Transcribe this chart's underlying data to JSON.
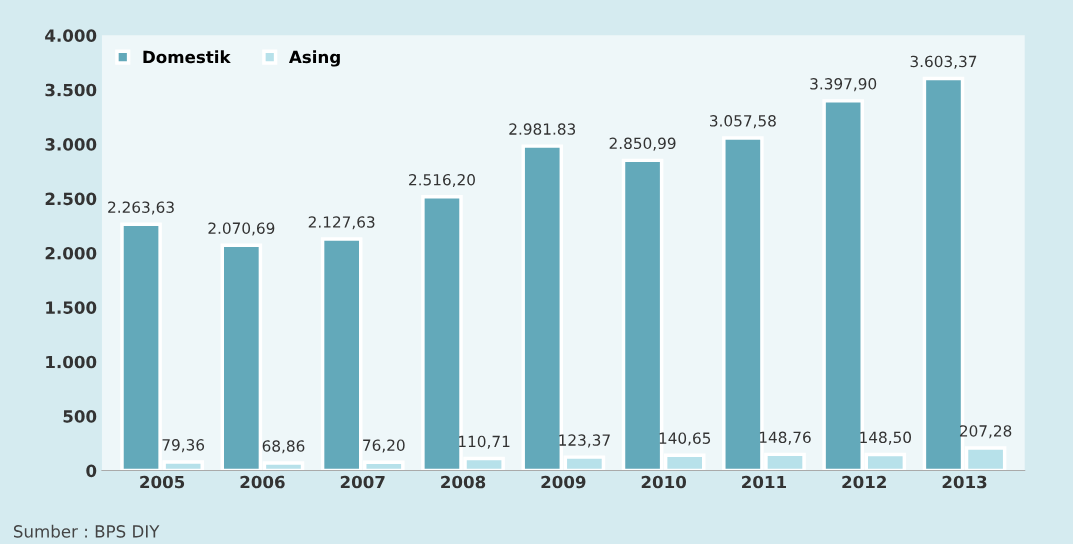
{
  "chart_data": {
    "type": "bar",
    "categories": [
      "2005",
      "2006",
      "2007",
      "2008",
      "2009",
      "2010",
      "2011",
      "2012",
      "2013"
    ],
    "series": [
      {
        "name": "Domestik",
        "color": "#63a9ba",
        "values": [
          2263.63,
          2070.69,
          2127.63,
          2516.2,
          2981.83,
          2850.99,
          3057.58,
          3397.9,
          3603.37
        ],
        "value_labels": [
          "2.263,63",
          "2.070,69",
          "2.127,63",
          "2.516,20",
          "2.981.83",
          "2.850,99",
          "3.057,58",
          "3.397,90",
          "3.603,37"
        ]
      },
      {
        "name": "Asing",
        "color": "#b7e1ea",
        "values": [
          79.36,
          68.86,
          76.2,
          110.71,
          123.37,
          140.65,
          148.76,
          148.5,
          207.28
        ],
        "value_labels": [
          "79,36",
          "68,86",
          "76,20",
          "110,71",
          "123,37",
          "140,65",
          "148,76",
          "148,50",
          "207,28"
        ]
      }
    ],
    "ylim": [
      0,
      4000
    ],
    "yticks": [
      {
        "value": 0,
        "label": "0"
      },
      {
        "value": 500,
        "label": "500"
      },
      {
        "value": 1000,
        "label": "1.000"
      },
      {
        "value": 1500,
        "label": "1.500"
      },
      {
        "value": 2000,
        "label": "2.000"
      },
      {
        "value": 2500,
        "label": "2.500"
      },
      {
        "value": 3000,
        "label": "3.000"
      },
      {
        "value": 3500,
        "label": "3.500"
      },
      {
        "value": 4000,
        "label": "4.000"
      }
    ],
    "legend": "top left",
    "grid": false,
    "annotations": [
      "Sumber : BPS DIY"
    ]
  }
}
